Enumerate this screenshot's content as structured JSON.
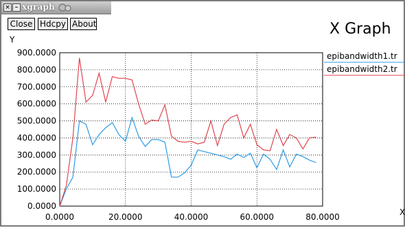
{
  "window": {
    "title": "xgraph"
  },
  "toolbar": {
    "close_label": "Close",
    "hdcpy_label": "Hdcpy",
    "about_label": "About"
  },
  "graph_title": "X Graph",
  "colors": {
    "series1": "#2b9be6",
    "series2": "#e0454f",
    "grid": "#000000"
  },
  "chart_data": {
    "type": "line",
    "title": "X Graph",
    "xlabel": "X",
    "ylabel": "Y",
    "xlim": [
      0,
      80
    ],
    "ylim": [
      0,
      900
    ],
    "grid": true,
    "legend_placement": "right",
    "x_ticks": [
      "0.0000",
      "20.0000",
      "40.0000",
      "60.0000",
      "80.0000"
    ],
    "y_ticks": [
      "0.0000",
      "100.0000",
      "200.0000",
      "300.0000",
      "400.0000",
      "500.0000",
      "600.0000",
      "700.0000",
      "800.0000",
      "900.0000"
    ],
    "series": [
      {
        "name": "epibandwidth1.tr",
        "color": "#2b9be6",
        "points": [
          [
            0,
            0
          ],
          [
            2,
            100
          ],
          [
            4,
            170
          ],
          [
            6,
            500
          ],
          [
            8,
            480
          ],
          [
            10,
            360
          ],
          [
            12,
            420
          ],
          [
            14,
            460
          ],
          [
            16,
            490
          ],
          [
            18,
            420
          ],
          [
            20,
            380
          ],
          [
            22,
            520
          ],
          [
            24,
            410
          ],
          [
            26,
            350
          ],
          [
            28,
            390
          ],
          [
            30,
            390
          ],
          [
            32,
            375
          ],
          [
            34,
            170
          ],
          [
            36,
            170
          ],
          [
            38,
            195
          ],
          [
            40,
            240
          ],
          [
            42,
            330
          ],
          [
            44,
            320
          ],
          [
            46,
            310
          ],
          [
            48,
            300
          ],
          [
            50,
            290
          ],
          [
            52,
            275
          ],
          [
            54,
            305
          ],
          [
            56,
            285
          ],
          [
            58,
            310
          ],
          [
            60,
            225
          ],
          [
            62,
            305
          ],
          [
            64,
            275
          ],
          [
            66,
            215
          ],
          [
            68,
            330
          ],
          [
            70,
            230
          ],
          [
            72,
            305
          ],
          [
            74,
            290
          ],
          [
            76,
            270
          ],
          [
            78,
            255
          ]
        ]
      },
      {
        "name": "epibandwidth2.tr",
        "color": "#e0454f",
        "points": [
          [
            0,
            0
          ],
          [
            2,
            120
          ],
          [
            4,
            400
          ],
          [
            6,
            870
          ],
          [
            8,
            610
          ],
          [
            10,
            650
          ],
          [
            12,
            780
          ],
          [
            14,
            610
          ],
          [
            16,
            760
          ],
          [
            18,
            750
          ],
          [
            20,
            750
          ],
          [
            22,
            740
          ],
          [
            24,
            600
          ],
          [
            26,
            480
          ],
          [
            28,
            505
          ],
          [
            30,
            500
          ],
          [
            32,
            595
          ],
          [
            34,
            410
          ],
          [
            36,
            380
          ],
          [
            38,
            375
          ],
          [
            40,
            380
          ],
          [
            42,
            365
          ],
          [
            44,
            375
          ],
          [
            46,
            500
          ],
          [
            48,
            355
          ],
          [
            50,
            480
          ],
          [
            52,
            520
          ],
          [
            54,
            535
          ],
          [
            56,
            400
          ],
          [
            58,
            480
          ],
          [
            60,
            360
          ],
          [
            62,
            330
          ],
          [
            64,
            325
          ],
          [
            66,
            450
          ],
          [
            68,
            355
          ],
          [
            70,
            420
          ],
          [
            72,
            400
          ],
          [
            74,
            335
          ],
          [
            76,
            400
          ],
          [
            78,
            405
          ]
        ]
      }
    ]
  }
}
